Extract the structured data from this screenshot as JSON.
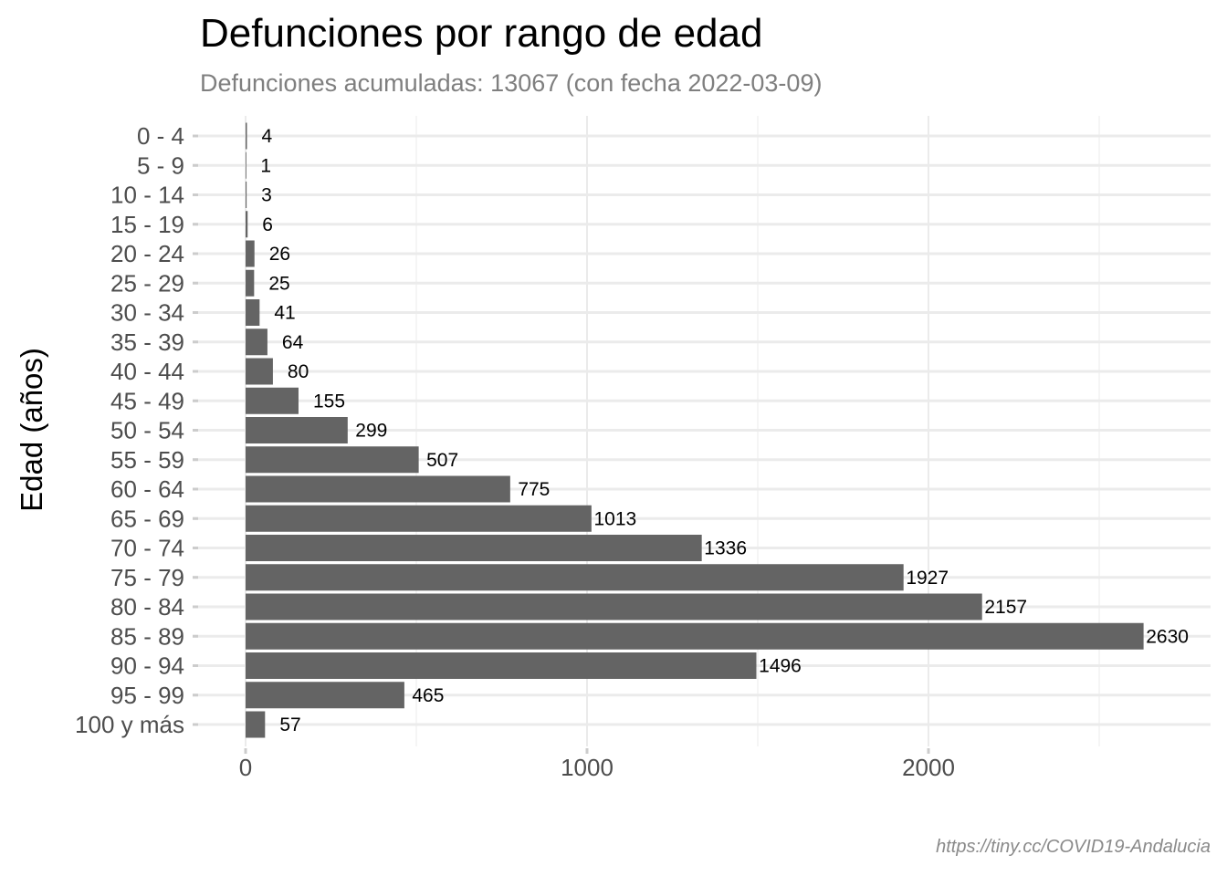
{
  "chart_data": {
    "type": "bar",
    "orientation": "horizontal",
    "title": "Defunciones por rango de edad",
    "subtitle": "Defunciones acumuladas: 13067 (con fecha 2022-03-09)",
    "xlabel": "",
    "ylabel": "Edad (años)",
    "caption": "https://tiny.cc/COVID19-Andalucia",
    "xlim": [
      0,
      2800
    ],
    "x_ticks": [
      0,
      1000,
      2000
    ],
    "grid": true,
    "bar_color": "#646464",
    "categories": [
      "0 - 4",
      "5 - 9",
      "10 - 14",
      "15 - 19",
      "20 - 24",
      "25 - 29",
      "30 - 34",
      "35 - 39",
      "40 - 44",
      "45 - 49",
      "50 - 54",
      "55 - 59",
      "60 - 64",
      "65 - 69",
      "70 - 74",
      "75 - 79",
      "80 - 84",
      "85 - 89",
      "90 - 94",
      "95 - 99",
      "100 y más"
    ],
    "values": [
      4,
      1,
      3,
      6,
      26,
      25,
      41,
      64,
      80,
      155,
      299,
      507,
      775,
      1013,
      1336,
      1927,
      2157,
      2630,
      1496,
      465,
      57
    ]
  }
}
